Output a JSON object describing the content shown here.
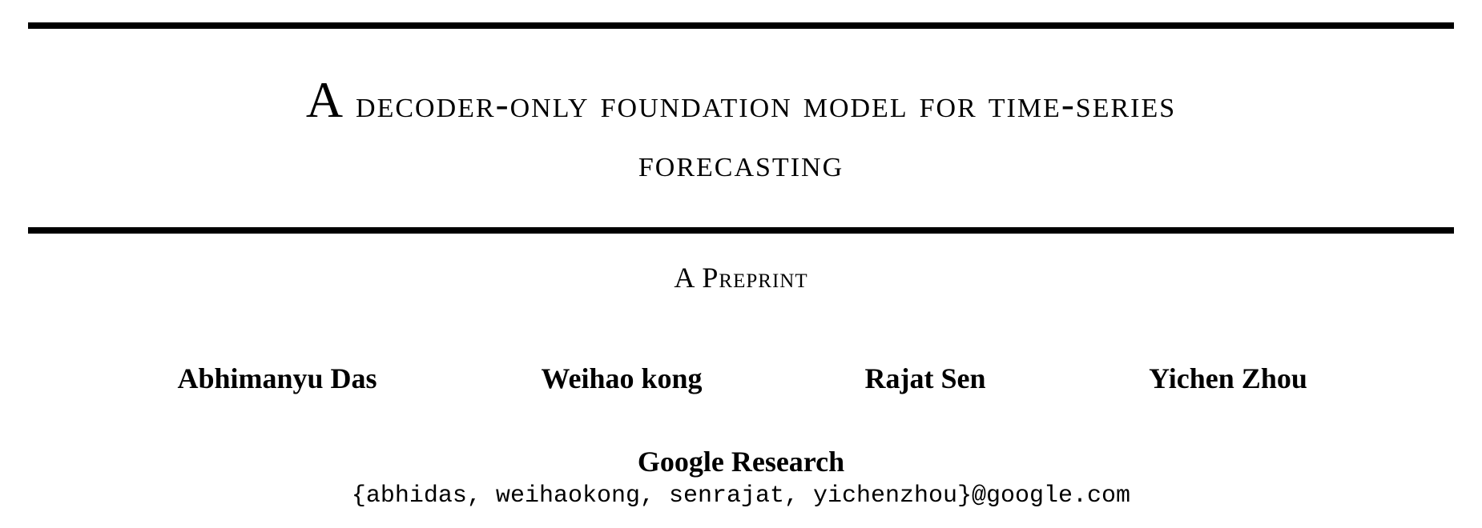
{
  "paper": {
    "title_initial": "A",
    "title_line1_rest": " decoder-only foundation model for time-series",
    "title_line2": "forecasting",
    "preprint_label": "A Preprint",
    "authors": [
      {
        "name": "Abhimanyu Das"
      },
      {
        "name": "Weihao kong"
      },
      {
        "name": "Rajat Sen"
      },
      {
        "name": "Yichen Zhou"
      }
    ],
    "affiliation": "Google Research",
    "email": "{abhidas, weihaokong, senrajat, yichenzhou}@google.com"
  }
}
